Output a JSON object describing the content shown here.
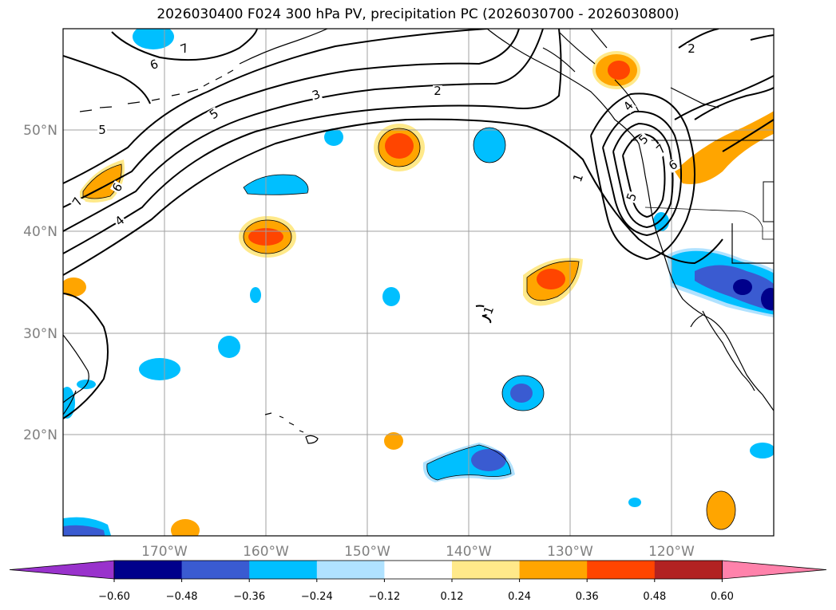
{
  "title": "2026030400 F024 300 hPa PV, precipitation PC (2026030700 - 2026030800)",
  "map": {
    "lat_ticks": [
      "50°N",
      "40°N",
      "30°N",
      "20°N"
    ],
    "lon_ticks": [
      "170°W",
      "160°W",
      "150°W",
      "140°W",
      "130°W",
      "120°W"
    ]
  },
  "pv_contour_labels": [
    "7",
    "6",
    "5",
    "5",
    "4",
    "3",
    "2",
    "2",
    "1",
    "1",
    "6",
    "7",
    "5",
    "4",
    "6",
    "7",
    "5"
  ],
  "colorbar": {
    "ticks": [
      "−0.60",
      "−0.48",
      "−0.36",
      "−0.24",
      "−0.12",
      "0.12",
      "0.24",
      "0.36",
      "0.48",
      "0.60"
    ],
    "colors": [
      "#9932CC",
      "#00008B",
      "#3A5BD1",
      "#00BFFF",
      "#B0E2FF",
      "#FFFFFF",
      "#FFE98A",
      "#FFA500",
      "#FF4500",
      "#B22222",
      "#FF82AB"
    ]
  }
}
